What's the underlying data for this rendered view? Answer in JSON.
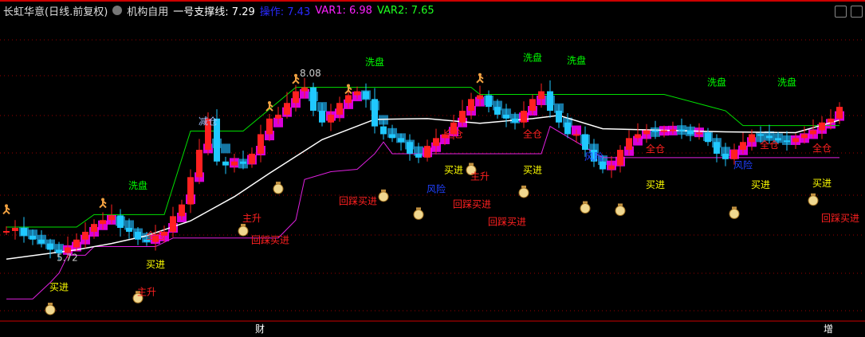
{
  "header": {
    "title": "长虹华意(日线.前复权)",
    "indicator": "机构自用",
    "support_label": "一号支撑线: 7.29",
    "op_label": "操作: 7.43",
    "var1_label": "VAR1: 6.98",
    "var2_label": "VAR2: 7.65"
  },
  "colors": {
    "up": "#ff2020",
    "down": "#20c8ff",
    "ma": "#ffffff",
    "support": "#00e000",
    "step": "#e020e0",
    "band": "#ff00ff",
    "band2": "#1a8cc0"
  },
  "chart_data": {
    "type": "candlestick",
    "ylim": [
      4.4,
      8.9
    ],
    "price_labels": {
      "high": "8.08",
      "low": "5.72"
    },
    "closes": [
      6.06,
      6.1,
      6.0,
      5.95,
      5.9,
      5.82,
      5.78,
      5.85,
      5.95,
      6.05,
      6.15,
      6.2,
      6.26,
      6.1,
      6.05,
      5.95,
      5.92,
      6.0,
      6.05,
      6.25,
      6.4,
      6.75,
      7.1,
      7.5,
      6.95,
      6.9,
      6.95,
      6.92,
      7.05,
      7.3,
      7.5,
      7.55,
      7.7,
      7.85,
      7.9,
      7.6,
      7.45,
      7.55,
      7.7,
      7.8,
      7.85,
      7.75,
      7.4,
      7.3,
      7.25,
      7.2,
      7.05,
      7.0,
      7.15,
      7.25,
      7.3,
      7.45,
      7.6,
      7.75,
      7.8,
      7.65,
      7.55,
      7.5,
      7.45,
      7.6,
      7.75,
      7.85,
      7.6,
      7.45,
      7.3,
      7.3,
      7.1,
      6.95,
      6.85,
      6.9,
      7.1,
      7.25,
      7.3,
      7.35,
      7.33,
      7.35,
      7.36,
      7.35,
      7.3,
      7.32,
      7.2,
      7.05,
      6.98,
      7.1,
      7.2,
      7.3,
      7.28,
      7.25,
      7.22,
      7.2,
      7.25,
      7.3,
      7.35,
      7.45,
      7.5,
      7.65
    ],
    "ma_line": [
      [
        0,
        5.7
      ],
      [
        8,
        5.82
      ],
      [
        12,
        5.9
      ],
      [
        16,
        6.0
      ],
      [
        21,
        6.19
      ],
      [
        26,
        6.5
      ],
      [
        30,
        6.8
      ],
      [
        36,
        7.23
      ],
      [
        42,
        7.49
      ],
      [
        48,
        7.5
      ],
      [
        54,
        7.44
      ],
      [
        60,
        7.5
      ],
      [
        63,
        7.54
      ],
      [
        68,
        7.37
      ],
      [
        75,
        7.35
      ],
      [
        82,
        7.33
      ],
      [
        90,
        7.32
      ],
      [
        95,
        7.48
      ]
    ],
    "support_line": [
      [
        0,
        6.11
      ],
      [
        8,
        6.11
      ],
      [
        10,
        6.27
      ],
      [
        18,
        6.27
      ],
      [
        21,
        7.34
      ],
      [
        27,
        7.34
      ],
      [
        33,
        7.9
      ],
      [
        53,
        7.9
      ],
      [
        54,
        7.81
      ],
      [
        75,
        7.81
      ],
      [
        82,
        7.6
      ],
      [
        84,
        7.41
      ],
      [
        95,
        7.41
      ]
    ],
    "step_line": [
      [
        0,
        5.19
      ],
      [
        3,
        5.19
      ],
      [
        5,
        5.4
      ],
      [
        6,
        5.52
      ],
      [
        7,
        5.75
      ],
      [
        9,
        5.75
      ],
      [
        10,
        5.86
      ],
      [
        17,
        5.86
      ],
      [
        19,
        5.97
      ],
      [
        31,
        5.97
      ],
      [
        33,
        6.2
      ],
      [
        34,
        6.72
      ],
      [
        37,
        6.82
      ],
      [
        40,
        6.85
      ],
      [
        42,
        7.05
      ],
      [
        43,
        7.2
      ],
      [
        44,
        7.05
      ],
      [
        61,
        7.05
      ],
      [
        62,
        7.4
      ],
      [
        68,
        7.0
      ],
      [
        95,
        7.0
      ]
    ],
    "annotations": [
      {
        "text": "洗盘",
        "i": 15,
        "p": 6.6,
        "color": "#00ff00"
      },
      {
        "text": "洗盘",
        "i": 42,
        "p": 8.18,
        "color": "#00ff00"
      },
      {
        "text": "洗盘",
        "i": 60,
        "p": 8.24,
        "color": "#00ff00"
      },
      {
        "text": "洗盘",
        "i": 65,
        "p": 8.2,
        "color": "#00ff00"
      },
      {
        "text": "洗盘",
        "i": 81,
        "p": 7.92,
        "color": "#00ff00"
      },
      {
        "text": "洗盘",
        "i": 89,
        "p": 7.92,
        "color": "#00ff00"
      },
      {
        "text": "买进",
        "i": 6,
        "p": 5.3,
        "color": "#ffff00"
      },
      {
        "text": "买进",
        "i": 17,
        "p": 5.59,
        "color": "#ffff00"
      },
      {
        "text": "买进",
        "i": 51,
        "p": 6.8,
        "color": "#ffff00"
      },
      {
        "text": "买进",
        "i": 60,
        "p": 6.8,
        "color": "#ffff00"
      },
      {
        "text": "买进",
        "i": 74,
        "p": 6.61,
        "color": "#ffff00"
      },
      {
        "text": "买进",
        "i": 86,
        "p": 6.61,
        "color": "#ffff00"
      },
      {
        "text": "买进",
        "i": 93,
        "p": 6.63,
        "color": "#ffff00"
      },
      {
        "text": "主升",
        "i": 16,
        "p": 5.24,
        "color": "#ff2020"
      },
      {
        "text": "主升",
        "i": 28,
        "p": 6.18,
        "color": "#ff2020"
      },
      {
        "text": "主升",
        "i": 54,
        "p": 6.72,
        "color": "#ff2020"
      },
      {
        "text": "回踩买进",
        "i": 29,
        "p": 5.9,
        "color": "#ff2020"
      },
      {
        "text": "回踩买进",
        "i": 39,
        "p": 6.4,
        "color": "#ff2020"
      },
      {
        "text": "回踩买进",
        "i": 52,
        "p": 6.36,
        "color": "#ff2020"
      },
      {
        "text": "回踩买进",
        "i": 56,
        "p": 6.42,
        "color": "#ff2020"
      },
      {
        "text": "回踩买进",
        "i": 94,
        "p": 6.18,
        "color": "#ff2020"
      },
      {
        "text": "全仓",
        "i": 17,
        "p": 5.96,
        "color": "#ff2020"
      },
      {
        "text": "全仓",
        "i": 51,
        "p": 7.26,
        "color": "#ff2020"
      },
      {
        "text": "全仓",
        "i": 60,
        "p": 7.26,
        "color": "#ff2020"
      },
      {
        "text": "全仓",
        "i": 74,
        "p": 7.07,
        "color": "#ff2020"
      },
      {
        "text": "全仓",
        "i": 87,
        "p": 7.12,
        "color": "#ff2020"
      },
      {
        "text": "全仓",
        "i": 93,
        "p": 7.08,
        "color": "#ff2020"
      },
      {
        "text": "风险",
        "i": 49,
        "p": 6.84,
        "color": "#2040ff"
      },
      {
        "text": "风险",
        "i": 67,
        "p": 6.97,
        "color": "#2040ff"
      },
      {
        "text": "风险",
        "i": 84,
        "p": 6.86,
        "color": "#2040ff"
      },
      {
        "text": "减仓",
        "i": 23,
        "p": 7.42,
        "color": "#a0c0ff"
      }
    ],
    "money_bags": [
      [
        5,
        5.05
      ],
      [
        15,
        5.2
      ],
      [
        27,
        6.06
      ],
      [
        31,
        6.6
      ],
      [
        43,
        6.5
      ],
      [
        47,
        6.27
      ],
      [
        53,
        6.84
      ],
      [
        59,
        6.55
      ],
      [
        66,
        6.35
      ],
      [
        70,
        6.32
      ],
      [
        83,
        6.28
      ],
      [
        92,
        6.45
      ]
    ],
    "runners": [
      [
        0,
        6.28
      ],
      [
        11,
        6.36
      ],
      [
        30,
        7.6
      ],
      [
        33,
        7.95
      ],
      [
        39,
        7.82
      ],
      [
        54,
        7.96
      ]
    ],
    "xaxis_markers": [
      "财",
      "增"
    ]
  }
}
